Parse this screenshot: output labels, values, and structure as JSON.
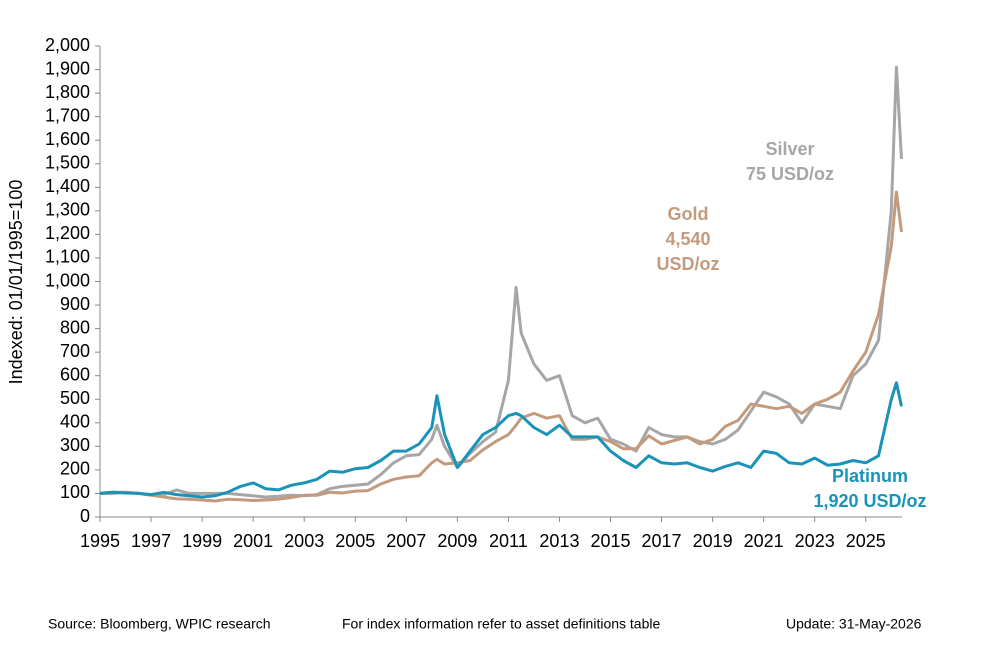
{
  "chart_data": {
    "type": "line",
    "y_label": "Indexed: 01/01/1995=100",
    "x": [
      1995,
      1995.5,
      1996,
      1996.5,
      1997,
      1997.5,
      1998,
      1998.5,
      1999,
      1999.5,
      2000,
      2000.5,
      2001,
      2001.5,
      2002,
      2002.5,
      2003,
      2003.5,
      2004,
      2004.5,
      2005,
      2005.5,
      2006,
      2006.5,
      2007,
      2007.5,
      2008,
      2008.2,
      2008.5,
      2009,
      2009.5,
      2010,
      2010.5,
      2011,
      2011.3,
      2011.5,
      2012,
      2012.5,
      2013,
      2013.5,
      2014,
      2014.5,
      2015,
      2015.5,
      2016,
      2016.5,
      2017,
      2017.5,
      2018,
      2018.5,
      2019,
      2019.5,
      2020,
      2020.5,
      2021,
      2021.5,
      2022,
      2022.5,
      2023,
      2023.5,
      2024,
      2024.5,
      2025,
      2025.5,
      2026,
      2026.2,
      2026.4
    ],
    "series": [
      {
        "name": "Silver",
        "annotation": [
          "75 USD/oz"
        ],
        "color": "#a6a6a6",
        "values": [
          100,
          105,
          105,
          100,
          95,
          95,
          115,
          100,
          100,
          100,
          100,
          95,
          90,
          85,
          88,
          92,
          90,
          95,
          120,
          130,
          135,
          140,
          180,
          230,
          260,
          265,
          330,
          390,
          300,
          210,
          270,
          320,
          360,
          580,
          975,
          780,
          650,
          580,
          600,
          430,
          400,
          420,
          330,
          310,
          280,
          380,
          350,
          340,
          340,
          320,
          310,
          330,
          370,
          450,
          530,
          510,
          480,
          400,
          480,
          470,
          460,
          600,
          650,
          750,
          1300,
          1910,
          1520
        ]
      },
      {
        "name": "Gold",
        "annotation": [
          "4,540",
          "USD/oz"
        ],
        "color": "#c49a7c",
        "values": [
          100,
          100,
          105,
          100,
          92,
          85,
          77,
          75,
          72,
          68,
          75,
          73,
          70,
          72,
          76,
          83,
          92,
          92,
          105,
          102,
          110,
          112,
          140,
          160,
          170,
          175,
          230,
          245,
          225,
          230,
          240,
          285,
          320,
          350,
          390,
          420,
          440,
          420,
          430,
          330,
          330,
          340,
          320,
          290,
          290,
          345,
          310,
          325,
          340,
          310,
          330,
          385,
          410,
          480,
          470,
          460,
          470,
          440,
          480,
          500,
          530,
          620,
          700,
          860,
          1150,
          1380,
          1210
        ]
      },
      {
        "name": "Platinum",
        "annotation": [
          "1,920 USD/oz"
        ],
        "color": "#1a93b8",
        "values": [
          100,
          105,
          102,
          100,
          95,
          105,
          95,
          90,
          85,
          90,
          105,
          130,
          145,
          120,
          115,
          135,
          145,
          160,
          195,
          190,
          205,
          210,
          240,
          280,
          280,
          310,
          380,
          515,
          350,
          210,
          280,
          350,
          380,
          430,
          440,
          430,
          380,
          350,
          390,
          340,
          340,
          340,
          280,
          240,
          210,
          260,
          230,
          225,
          230,
          210,
          195,
          215,
          230,
          210,
          280,
          270,
          230,
          225,
          250,
          220,
          225,
          240,
          230,
          260,
          500,
          570,
          470
        ]
      }
    ],
    "xlim": [
      1995,
      2026.42
    ],
    "xticks": [
      1995,
      1997,
      1999,
      2001,
      2003,
      2005,
      2007,
      2009,
      2011,
      2013,
      2015,
      2017,
      2019,
      2021,
      2023,
      2025
    ],
    "ylim": [
      0,
      2000
    ],
    "yticks": [
      0,
      100,
      200,
      300,
      400,
      500,
      600,
      700,
      800,
      900,
      {
        "value": 1000,
        "label": "1,000"
      },
      {
        "value": 1100,
        "label": "1,100"
      },
      {
        "value": 1200,
        "label": "1,200"
      },
      {
        "value": 1300,
        "label": "1,300"
      },
      {
        "value": 1400,
        "label": "1,400"
      },
      {
        "value": 1500,
        "label": "1,500"
      },
      {
        "value": 1600,
        "label": "1,600"
      },
      {
        "value": 1700,
        "label": "1,700"
      },
      {
        "value": 1800,
        "label": "1,800"
      },
      {
        "value": 1900,
        "label": "1,900"
      },
      {
        "value": 2000,
        "label": "2,000"
      }
    ],
    "grid": false
  },
  "footer": {
    "source": "Source: Bloomberg, WPIC research",
    "note": "For index information refer to asset definitions table",
    "update": "Update: 31-May-2026"
  }
}
